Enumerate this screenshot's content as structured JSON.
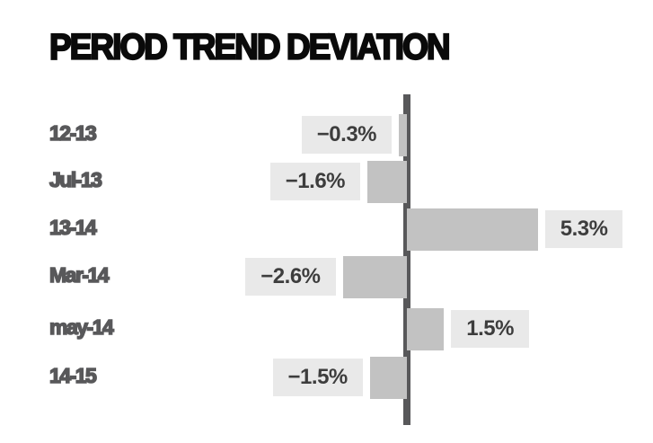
{
  "title": "PERIOD TREND DEVIATION",
  "chart_data": {
    "type": "bar",
    "orientation": "horizontal",
    "title": "PERIOD TREND DEVIATION",
    "categories": [
      "12-13",
      "Jul-13",
      "13-14",
      "Mar-14",
      "may-14",
      "14-15"
    ],
    "values": [
      -0.3,
      -1.6,
      5.3,
      -2.6,
      1.5,
      -1.5
    ],
    "value_labels": [
      "−0.3%",
      "−1.6%",
      "5.3%",
      "−2.6%",
      "1.5%",
      "−1.5%"
    ],
    "baseline": 0,
    "xlim": [
      -3.5,
      7
    ],
    "grid": false,
    "legend": "none",
    "colors": {
      "background": "#ffffff",
      "title_text": "#0a0a0a",
      "bar_fill": "#c2c2c2",
      "value_chip_bg": "#e9e9e9",
      "value_text": "#3d3d3d",
      "category_text": "#58585a",
      "axis_line": "#58585a"
    }
  }
}
